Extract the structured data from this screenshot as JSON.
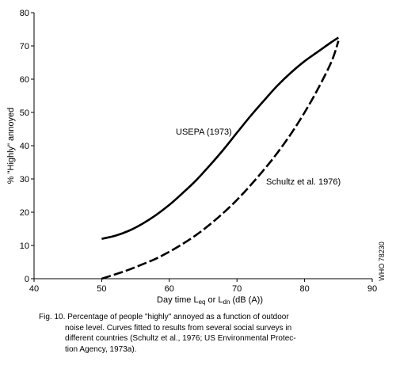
{
  "chart_data": {
    "type": "line",
    "title": "",
    "ylabel": "% \"Highly\" annoyed",
    "xlabel_parts": {
      "prefix": "Day time L",
      "sub1": "eq",
      "mid": " or L",
      "sub2": "dn",
      "suffix": " (dB (A))"
    },
    "xlim": [
      40,
      90
    ],
    "ylim": [
      0,
      80
    ],
    "x_ticks": [
      40,
      50,
      60,
      70,
      80,
      90
    ],
    "y_ticks": [
      0,
      10,
      20,
      30,
      40,
      50,
      60,
      70,
      80
    ],
    "grid": false,
    "series": [
      {
        "name": "USEPA (1973)",
        "line_style": "solid",
        "x": [
          50,
          52,
          54,
          56,
          58,
          60,
          62,
          64,
          66,
          68,
          70,
          72,
          74,
          76,
          78,
          80,
          82,
          84,
          85
        ],
        "y": [
          12,
          12.9,
          14.4,
          16.5,
          19.1,
          22.2,
          25.8,
          29.7,
          34.1,
          38.8,
          43.9,
          48.9,
          53.6,
          58.1,
          62,
          65.4,
          68.3,
          71.2,
          72.5
        ]
      },
      {
        "name": "Schultz et al. 1976)",
        "line_style": "dashed",
        "x": [
          50,
          52,
          54,
          56,
          58,
          60,
          62,
          64,
          66,
          68,
          70,
          72,
          74,
          76,
          78,
          80,
          82,
          84,
          85
        ],
        "y": [
          0,
          1.3,
          2.7,
          4.3,
          6,
          8.1,
          10.5,
          13.2,
          16.3,
          19.8,
          23.7,
          28.1,
          32.8,
          37.9,
          43.6,
          50,
          57.2,
          65.4,
          71.5
        ]
      }
    ]
  },
  "side_code": "WHO 78230",
  "caption": {
    "lines": [
      "Fig. 10. Percentage of people \"highly\" annoyed as a function of outdoor",
      "noise level. Curves fitted to results from several social surveys in",
      "different countries (Schultz et al., 1976; US Environmental Protec-",
      "tion Agency, 1973a)."
    ]
  }
}
